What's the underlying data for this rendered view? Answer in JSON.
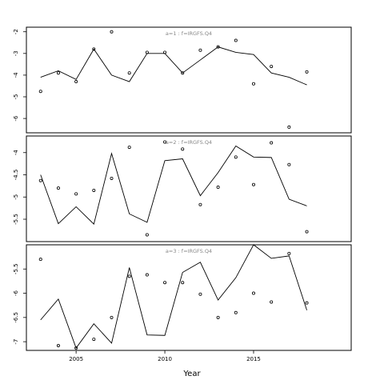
{
  "chart_data": {
    "type": "line",
    "xlabel": "Year",
    "xticks": [
      2005,
      2010,
      2015
    ],
    "xlim": [
      2002.2,
      2020.5
    ],
    "panels": [
      {
        "title": "a=1 : f=IRGFS.Q4",
        "ylim": [
          -6.55,
          -1.9
        ],
        "yticks": [
          -6,
          -5,
          -4,
          -3,
          -2
        ],
        "series": [
          {
            "kind": "line",
            "x": [
              2003,
              2004,
              2005,
              2006,
              2007,
              2008,
              2009,
              2010,
              2011,
              2012,
              2013,
              2014,
              2015,
              2016,
              2017,
              2018
            ],
            "y": [
              -4.1,
              -3.8,
              -4.2,
              -2.8,
              -4.0,
              -4.3,
              -3.0,
              -3.0,
              -3.9,
              -3.3,
              -2.7,
              -2.95,
              -3.05,
              -3.9,
              -4.1,
              -4.45
            ]
          },
          {
            "kind": "points",
            "x": [
              2003,
              2004,
              2005,
              2006,
              2007,
              2008,
              2009,
              2010,
              2011,
              2012,
              2013,
              2014,
              2015,
              2016,
              2017,
              2018
            ],
            "y": [
              -4.75,
              -3.9,
              -4.3,
              -2.8,
              -2.0,
              -3.9,
              -2.95,
              -2.95,
              -3.9,
              -2.85,
              -2.7,
              -2.4,
              -4.4,
              -3.6,
              -6.4,
              -3.85
            ]
          }
        ]
      },
      {
        "title": "a=2 : f=IRGFS.Q4",
        "ylim": [
          -5.95,
          -3.68
        ],
        "yticks": [
          -5.5,
          -5.0,
          -4.5,
          -4.0
        ],
        "series": [
          {
            "kind": "line",
            "x": [
              2003,
              2004,
              2005,
              2006,
              2007,
              2008,
              2009,
              2010,
              2011,
              2012,
              2013,
              2014,
              2015,
              2016,
              2017,
              2018
            ],
            "y": [
              -4.5,
              -5.6,
              -5.22,
              -5.61,
              -4.02,
              -5.38,
              -5.57,
              -4.18,
              -4.14,
              -4.97,
              -4.45,
              -3.85,
              -4.1,
              -4.11,
              -5.05,
              -5.2
            ]
          },
          {
            "kind": "points",
            "x": [
              2003,
              2004,
              2005,
              2006,
              2007,
              2008,
              2009,
              2010,
              2011,
              2012,
              2013,
              2014,
              2015,
              2016,
              2017,
              2018
            ],
            "y": [
              -4.63,
              -4.8,
              -4.93,
              -4.85,
              -4.58,
              -3.88,
              -5.85,
              -3.76,
              -3.92,
              -5.17,
              -4.78,
              -4.1,
              -4.72,
              -3.78,
              -4.27,
              -5.78
            ]
          }
        ]
      },
      {
        "title": "a=3 : f=IRGFS.Q4",
        "ylim": [
          -7.13,
          -5.05
        ],
        "yticks": [
          -7.0,
          -6.5,
          -6.0,
          -5.5
        ],
        "series": [
          {
            "kind": "line",
            "x": [
              2003,
              2004,
              2005,
              2006,
              2007,
              2008,
              2009,
              2010,
              2011,
              2012,
              2013,
              2014,
              2015,
              2016,
              2017,
              2018
            ],
            "y": [
              -6.55,
              -6.12,
              -7.13,
              -6.63,
              -7.03,
              -5.47,
              -6.86,
              -6.87,
              -5.57,
              -5.36,
              -6.14,
              -5.68,
              -5.0,
              -5.28,
              -5.23,
              -6.35
            ]
          },
          {
            "kind": "points",
            "x": [
              2003,
              2004,
              2005,
              2006,
              2007,
              2008,
              2009,
              2010,
              2011,
              2012,
              2013,
              2014,
              2015,
              2016,
              2017,
              2018
            ],
            "y": [
              -5.3,
              -7.08,
              -7.13,
              -6.95,
              -6.5,
              -5.65,
              -5.62,
              -5.78,
              -5.78,
              -6.02,
              -6.5,
              -6.4,
              -6.0,
              -6.18,
              -5.18,
              -6.2
            ]
          }
        ]
      }
    ]
  }
}
